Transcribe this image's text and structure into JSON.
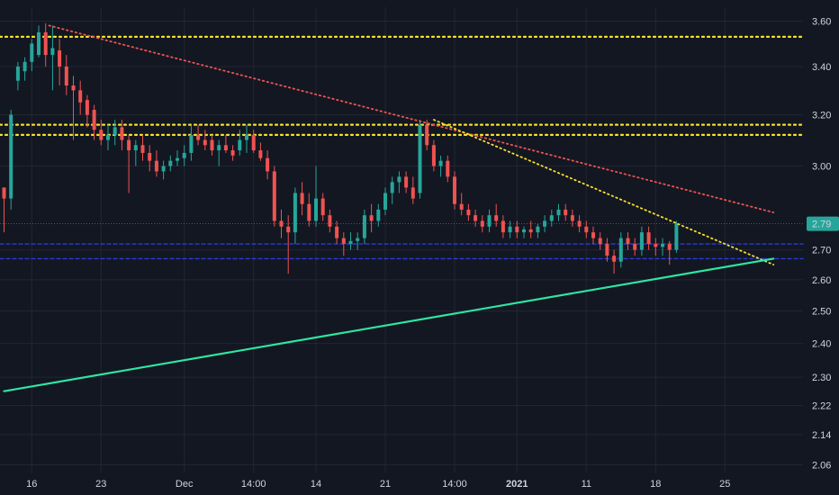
{
  "colors": {
    "background": "#131722",
    "grid": "#232632",
    "axis_text": "#d1d4dc",
    "up": "#26a69a",
    "down": "#ef5350",
    "support_line": "#2ee6a0",
    "resistance_yellow": "#f5e22c",
    "downtrend_red": "#ef5350",
    "blue_level": "#2b3bd8",
    "price_label_bg": "#26a69a"
  },
  "chart_data": {
    "type": "candlestick",
    "title": "",
    "xlabel": "",
    "ylabel": "",
    "y_scale": "log",
    "ylim": [
      2.04,
      3.63
    ],
    "grid": true,
    "price_axis_side": "right",
    "y_ticks": [
      "3.60",
      "3.40",
      "3.20",
      "3.00",
      "2.79",
      "2.70",
      "2.60",
      "2.50",
      "2.40",
      "2.30",
      "2.22",
      "2.14",
      "2.06"
    ],
    "x_ticks": [
      {
        "label": "16",
        "bar": 4,
        "bold": false
      },
      {
        "label": "23",
        "bar": 14,
        "bold": false
      },
      {
        "label": "Dec",
        "bar": 26,
        "bold": false
      },
      {
        "label": "14:00",
        "bar": 36,
        "bold": false
      },
      {
        "label": "14",
        "bar": 45,
        "bold": false
      },
      {
        "label": "21",
        "bar": 55,
        "bold": false
      },
      {
        "label": "14:00",
        "bar": 65,
        "bold": false
      },
      {
        "label": "2021",
        "bar": 74,
        "bold": true
      },
      {
        "label": "11",
        "bar": 84,
        "bold": false
      },
      {
        "label": "18",
        "bar": 94,
        "bold": false
      },
      {
        "label": "25",
        "bar": 104,
        "bold": false
      }
    ],
    "last_price": "2.79",
    "horizontal_levels": [
      {
        "price": 3.53,
        "style": "dotted",
        "color": "resistance_yellow"
      },
      {
        "price": 3.16,
        "style": "dotted",
        "color": "resistance_yellow"
      },
      {
        "price": 3.12,
        "style": "dotted",
        "color": "resistance_yellow"
      },
      {
        "price": 2.72,
        "style": "dashed",
        "color": "blue_level"
      },
      {
        "price": 2.67,
        "style": "dashed",
        "color": "blue_level"
      }
    ],
    "trendlines": [
      {
        "from_bar": 6.5,
        "from_price": 3.58,
        "to_bar": 111,
        "to_price": 2.83,
        "style": "dotted",
        "color": "downtrend_red"
      },
      {
        "from_bar": 62,
        "from_price": 3.18,
        "to_bar": 111,
        "to_price": 2.65,
        "style": "dotted",
        "color": "resistance_yellow"
      },
      {
        "from_bar": 0,
        "from_price": 2.26,
        "to_bar": 111,
        "to_price": 2.67,
        "style": "solid",
        "color": "support_line"
      }
    ],
    "candles": [
      [
        2.92,
        2.92,
        2.76,
        2.88
      ],
      [
        2.88,
        3.22,
        2.84,
        3.2
      ],
      [
        3.34,
        3.42,
        3.3,
        3.4
      ],
      [
        3.38,
        3.44,
        3.34,
        3.42
      ],
      [
        3.42,
        3.52,
        3.38,
        3.5
      ],
      [
        3.45,
        3.58,
        3.44,
        3.55
      ],
      [
        3.55,
        3.59,
        3.4,
        3.45
      ],
      [
        3.45,
        3.58,
        3.3,
        3.48
      ],
      [
        3.47,
        3.52,
        3.32,
        3.4
      ],
      [
        3.4,
        3.45,
        3.28,
        3.32
      ],
      [
        3.32,
        3.36,
        3.1,
        3.3
      ],
      [
        3.3,
        3.34,
        3.2,
        3.25
      ],
      [
        3.26,
        3.28,
        3.15,
        3.2
      ],
      [
        3.22,
        3.24,
        3.1,
        3.14
      ],
      [
        3.14,
        3.18,
        3.08,
        3.1
      ],
      [
        3.1,
        3.16,
        3.06,
        3.12
      ],
      [
        3.12,
        3.18,
        3.08,
        3.15
      ],
      [
        3.15,
        3.18,
        3.06,
        3.1
      ],
      [
        3.1,
        3.12,
        2.9,
        3.06
      ],
      [
        3.06,
        3.1,
        3.0,
        3.08
      ],
      [
        3.08,
        3.12,
        3.02,
        3.05
      ],
      [
        3.05,
        3.08,
        2.98,
        3.02
      ],
      [
        3.02,
        3.06,
        2.96,
        2.98
      ],
      [
        2.98,
        3.02,
        2.95,
        3.0
      ],
      [
        3.0,
        3.04,
        2.98,
        3.02
      ],
      [
        3.02,
        3.06,
        3.0,
        3.03
      ],
      [
        3.03,
        3.08,
        3.0,
        3.05
      ],
      [
        3.05,
        3.16,
        3.02,
        3.12
      ],
      [
        3.12,
        3.16,
        3.08,
        3.1
      ],
      [
        3.1,
        3.14,
        3.06,
        3.08
      ],
      [
        3.1,
        3.12,
        3.04,
        3.06
      ],
      [
        3.06,
        3.1,
        3.0,
        3.08
      ],
      [
        3.08,
        3.12,
        3.05,
        3.06
      ],
      [
        3.06,
        3.08,
        3.02,
        3.04
      ],
      [
        3.06,
        3.14,
        3.04,
        3.1
      ],
      [
        3.1,
        3.16,
        3.05,
        3.12
      ],
      [
        3.12,
        3.14,
        3.05,
        3.06
      ],
      [
        3.06,
        3.09,
        3.02,
        3.03
      ],
      [
        3.03,
        3.06,
        2.95,
        2.98
      ],
      [
        2.98,
        3.0,
        2.78,
        2.8
      ],
      [
        2.8,
        2.84,
        2.74,
        2.78
      ],
      [
        2.78,
        2.82,
        2.62,
        2.76
      ],
      [
        2.76,
        2.92,
        2.72,
        2.9
      ],
      [
        2.9,
        2.94,
        2.82,
        2.86
      ],
      [
        2.86,
        2.9,
        2.78,
        2.8
      ],
      [
        2.8,
        3.0,
        2.78,
        2.88
      ],
      [
        2.88,
        2.9,
        2.8,
        2.82
      ],
      [
        2.82,
        2.84,
        2.76,
        2.78
      ],
      [
        2.78,
        2.8,
        2.72,
        2.74
      ],
      [
        2.74,
        2.76,
        2.68,
        2.72
      ],
      [
        2.72,
        2.76,
        2.7,
        2.73
      ],
      [
        2.73,
        2.76,
        2.7,
        2.74
      ],
      [
        2.74,
        2.84,
        2.72,
        2.82
      ],
      [
        2.82,
        2.86,
        2.76,
        2.8
      ],
      [
        2.8,
        2.86,
        2.78,
        2.84
      ],
      [
        2.84,
        2.92,
        2.82,
        2.9
      ],
      [
        2.9,
        2.96,
        2.86,
        2.94
      ],
      [
        2.94,
        2.98,
        2.9,
        2.96
      ],
      [
        2.96,
        2.98,
        2.9,
        2.92
      ],
      [
        2.92,
        2.96,
        2.86,
        2.88
      ],
      [
        2.9,
        3.18,
        2.88,
        3.16
      ],
      [
        3.16,
        3.18,
        3.06,
        3.08
      ],
      [
        3.08,
        3.1,
        2.98,
        3.0
      ],
      [
        3.0,
        3.04,
        2.96,
        3.02
      ],
      [
        3.02,
        3.04,
        2.94,
        2.96
      ],
      [
        2.96,
        2.98,
        2.84,
        2.86
      ],
      [
        2.86,
        2.9,
        2.82,
        2.84
      ],
      [
        2.84,
        2.86,
        2.8,
        2.82
      ],
      [
        2.82,
        2.84,
        2.78,
        2.8
      ],
      [
        2.8,
        2.82,
        2.76,
        2.78
      ],
      [
        2.78,
        2.84,
        2.76,
        2.82
      ],
      [
        2.82,
        2.86,
        2.78,
        2.8
      ],
      [
        2.8,
        2.82,
        2.74,
        2.76
      ],
      [
        2.76,
        2.8,
        2.74,
        2.78
      ],
      [
        2.78,
        2.8,
        2.74,
        2.76
      ],
      [
        2.76,
        2.78,
        2.74,
        2.77
      ],
      [
        2.77,
        2.8,
        2.74,
        2.76
      ],
      [
        2.76,
        2.79,
        2.74,
        2.78
      ],
      [
        2.78,
        2.82,
        2.76,
        2.8
      ],
      [
        2.8,
        2.84,
        2.78,
        2.82
      ],
      [
        2.82,
        2.86,
        2.8,
        2.84
      ],
      [
        2.84,
        2.86,
        2.8,
        2.82
      ],
      [
        2.82,
        2.84,
        2.78,
        2.8
      ],
      [
        2.8,
        2.82,
        2.76,
        2.78
      ],
      [
        2.78,
        2.8,
        2.74,
        2.76
      ],
      [
        2.76,
        2.78,
        2.72,
        2.74
      ],
      [
        2.74,
        2.76,
        2.7,
        2.72
      ],
      [
        2.72,
        2.74,
        2.66,
        2.68
      ],
      [
        2.68,
        2.7,
        2.62,
        2.66
      ],
      [
        2.66,
        2.76,
        2.64,
        2.74
      ],
      [
        2.74,
        2.76,
        2.7,
        2.72
      ],
      [
        2.72,
        2.74,
        2.68,
        2.7
      ],
      [
        2.7,
        2.78,
        2.68,
        2.76
      ],
      [
        2.76,
        2.78,
        2.7,
        2.72
      ],
      [
        2.72,
        2.74,
        2.68,
        2.71
      ],
      [
        2.71,
        2.74,
        2.68,
        2.72
      ],
      [
        2.72,
        2.73,
        2.65,
        2.7
      ],
      [
        2.7,
        2.8,
        2.69,
        2.79
      ]
    ]
  }
}
